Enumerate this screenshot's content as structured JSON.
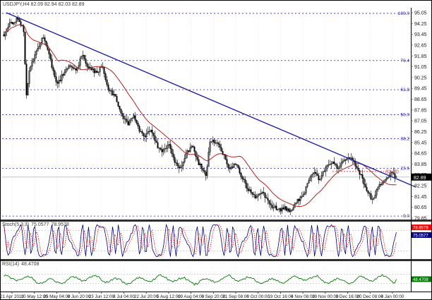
{
  "header": {
    "symbol": "USDJPY",
    "timeframe": "H4",
    "title_full": "USDJPY,H4   82.09 82.94 82.03 82.89",
    "open": "82.09",
    "high": "82.94",
    "low": "82.03",
    "close": "82.89"
  },
  "colors": {
    "trendline": "#2020a0",
    "moving_average": "#b22222",
    "fib": "#2323b8",
    "grid": "#e3e3e3",
    "levels": "#c8c8c8",
    "candle": "#000000",
    "stoch_main": "#000080",
    "stoch_signal": "#ff0000",
    "rsi": "#007a00",
    "annotation_red": "#e03030",
    "current_price_line": "#bbbbbb",
    "tag_bg": "#000000",
    "tag_text": "#ffffff",
    "axis_text": "#1a1a1a",
    "separator": "#2e2e2e"
  },
  "chart_data": {
    "type": "candlestick",
    "title": "USDJPY H4 downtrend (Apr 2010 - Jan 2011) with Fibonacci retracement, descending trendline, moving average, Stochastic and RSI",
    "price_axis": {
      "ticks": [
        "95.05",
        "94.25",
        "93.45",
        "92.65",
        "91.85",
        "91.05",
        "90.25",
        "89.45",
        "88.65",
        "87.85",
        "87.05",
        "86.25",
        "85.45",
        "84.65",
        "83.85",
        "83.05",
        "82.25",
        "81.45",
        "80.65",
        "79.85"
      ],
      "tick_step": 0.8
    },
    "time_labels": [
      "21 Apr 2010",
      "10 May 12:00",
      "25 May 04:00",
      "8 Jun 20:00",
      "23 Jun 12:00",
      "8 Jul 04:00",
      "22 Jul 20:00",
      "5 Aug 12:00",
      "19 Aug 04:00",
      "6 Sep 20:00",
      "21 Sep 08:00",
      "6 Oct 00:00",
      "19 Oct 16:00",
      "4 Nov 08:00",
      "19 Nov 00:00",
      "3 Dec 16:00",
      "20 Dec 08:00",
      "4 Jan 00:00"
    ],
    "price_path_anchors": [
      [
        0.0,
        93.3
      ],
      [
        0.015,
        94.2
      ],
      [
        0.035,
        94.6
      ],
      [
        0.05,
        93.9
      ],
      [
        0.058,
        88.8
      ],
      [
        0.065,
        90.8
      ],
      [
        0.085,
        92.4
      ],
      [
        0.1,
        93.2
      ],
      [
        0.115,
        92.0
      ],
      [
        0.135,
        89.6
      ],
      [
        0.15,
        90.5
      ],
      [
        0.17,
        91.2
      ],
      [
        0.185,
        90.8
      ],
      [
        0.2,
        92.0
      ],
      [
        0.215,
        91.0
      ],
      [
        0.235,
        90.6
      ],
      [
        0.25,
        91.1
      ],
      [
        0.265,
        89.5
      ],
      [
        0.285,
        88.8
      ],
      [
        0.3,
        87.5
      ],
      [
        0.315,
        86.8
      ],
      [
        0.33,
        87.4
      ],
      [
        0.345,
        86.3
      ],
      [
        0.36,
        85.9
      ],
      [
        0.375,
        86.5
      ],
      [
        0.39,
        85.2
      ],
      [
        0.405,
        84.8
      ],
      [
        0.42,
        85.4
      ],
      [
        0.435,
        83.9
      ],
      [
        0.45,
        83.6
      ],
      [
        0.465,
        84.7
      ],
      [
        0.48,
        85.2
      ],
      [
        0.49,
        84.2
      ],
      [
        0.505,
        83.5
      ],
      [
        0.515,
        82.95
      ],
      [
        0.525,
        85.6
      ],
      [
        0.545,
        85.4
      ],
      [
        0.56,
        84.5
      ],
      [
        0.575,
        83.5
      ],
      [
        0.59,
        83.9
      ],
      [
        0.605,
        83.0
      ],
      [
        0.62,
        82.0
      ],
      [
        0.64,
        81.4
      ],
      [
        0.66,
        81.7
      ],
      [
        0.68,
        80.8
      ],
      [
        0.7,
        80.45
      ],
      [
        0.715,
        80.6
      ],
      [
        0.73,
        80.3
      ],
      [
        0.745,
        81.1
      ],
      [
        0.76,
        81.4
      ],
      [
        0.775,
        82.5
      ],
      [
        0.79,
        83.3
      ],
      [
        0.805,
        82.7
      ],
      [
        0.82,
        83.6
      ],
      [
        0.835,
        84.0
      ],
      [
        0.85,
        83.6
      ],
      [
        0.865,
        84.0
      ],
      [
        0.88,
        84.4
      ],
      [
        0.895,
        83.8
      ],
      [
        0.91,
        83.0
      ],
      [
        0.925,
        81.8
      ],
      [
        0.94,
        81.2
      ],
      [
        0.955,
        82.3
      ],
      [
        0.97,
        82.6
      ],
      [
        0.985,
        83.2
      ],
      [
        1.0,
        82.89
      ]
    ],
    "fib_levels": [
      {
        "label": "100.0",
        "price": 95.0
      },
      {
        "label": "76.4",
        "price": 91.51
      },
      {
        "label": "61.8",
        "price": 89.35
      },
      {
        "label": "50.0",
        "price": 87.5
      },
      {
        "label": "38.2",
        "price": 85.73
      },
      {
        "label": "23.6",
        "price": 83.54
      },
      {
        "label": "0.0",
        "price": 80.0
      }
    ],
    "trendline": {
      "price_start": 95.05,
      "price_end": 82.15
    },
    "annotation": {
      "text": "83.30",
      "price": 83.3
    },
    "current_price": {
      "text": "82.89",
      "price": 82.89
    },
    "moving_average_period": 24,
    "indicators": {
      "stochastic": {
        "name": "Stoch(5,3,3)",
        "main_value": "75.0577",
        "signal_value": "78.9578",
        "levels": [
          80,
          20
        ],
        "range": [
          0,
          100
        ]
      },
      "rsi": {
        "name": "RSI(14)",
        "value": "48.4708",
        "levels": [
          70,
          30
        ],
        "range": [
          0,
          100
        ]
      }
    }
  }
}
